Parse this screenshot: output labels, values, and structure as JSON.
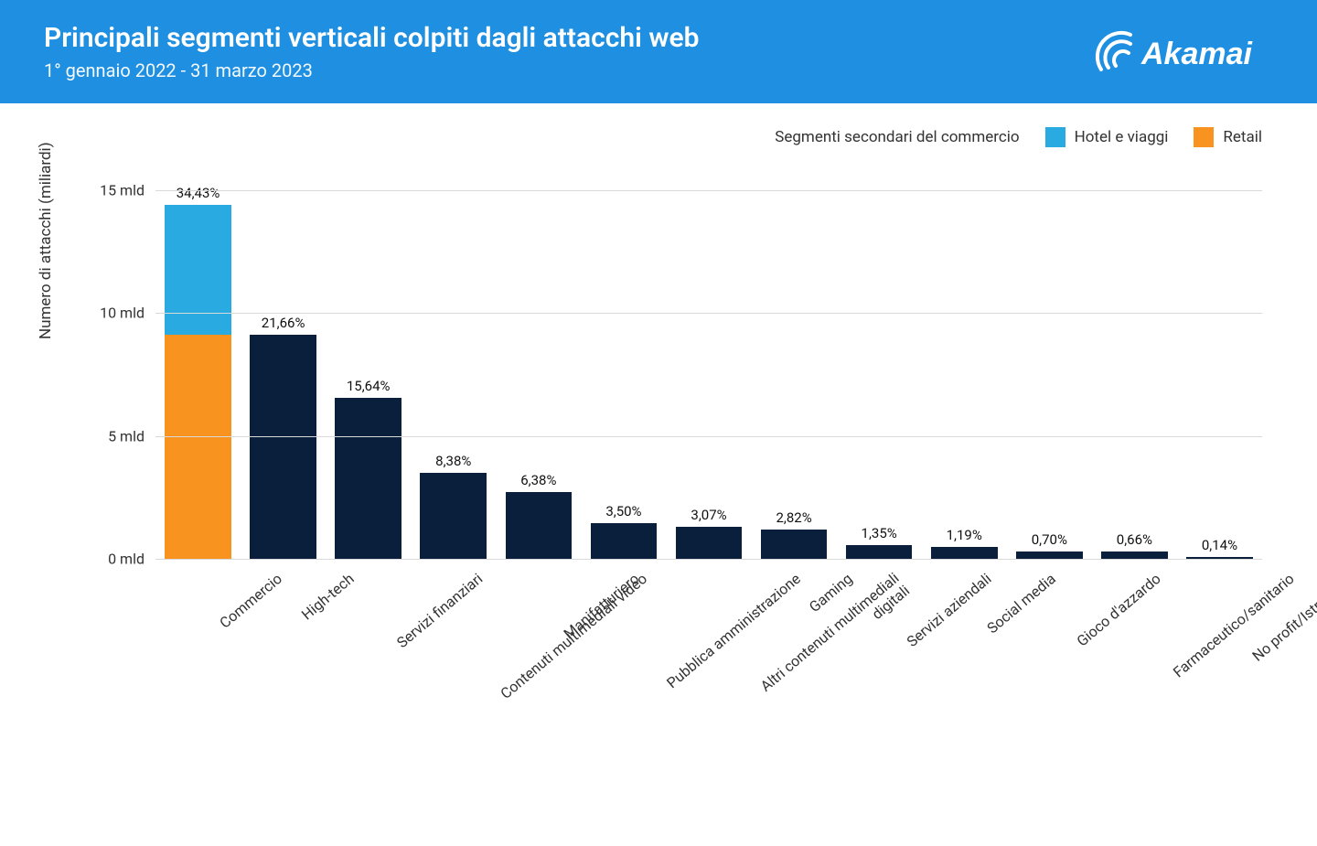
{
  "header": {
    "title": "Principali segmenti verticali colpiti dagli attacchi web",
    "subtitle": "1° gennaio 2022 - 31 marzo 2023",
    "logo_text": "Akamai",
    "bg_color": "#1e8fe1"
  },
  "legend": {
    "label": "Segmenti secondari del commercio",
    "items": [
      {
        "label": "Hotel e viaggi",
        "color": "#29abe2"
      },
      {
        "label": "Retail",
        "color": "#f7931e"
      }
    ]
  },
  "chart": {
    "type": "bar",
    "ylabel": "Numero di attacchi (miliardi)",
    "ymax": 16,
    "yticks": [
      {
        "value": 0,
        "label": "0 mld"
      },
      {
        "value": 5,
        "label": "5 mld"
      },
      {
        "value": 10,
        "label": "10 mld"
      },
      {
        "value": 15,
        "label": "15 mld"
      }
    ],
    "grid_color": "#d9d9d9",
    "default_bar_color": "#0a1f3c",
    "categories": [
      {
        "label": "Commercio",
        "pct_label": "34,43%",
        "stacked": true,
        "segments": [
          {
            "value": 9.1,
            "color": "#f7931e"
          },
          {
            "value": 5.3,
            "color": "#29abe2"
          }
        ]
      },
      {
        "label": "High-tech",
        "pct_label": "21,66%",
        "value": 9.1
      },
      {
        "label": "Servizi finanziari",
        "pct_label": "15,64%",
        "value": 6.55
      },
      {
        "label": "Contenuti multimediali video",
        "pct_label": "8,38%",
        "value": 3.5
      },
      {
        "label": "Manifatturiero",
        "pct_label": "6,38%",
        "value": 2.7
      },
      {
        "label": "Pubblica amministrazione",
        "pct_label": "3,50%",
        "value": 1.47
      },
      {
        "label": "Altri contenuti multimediali digitali",
        "pct_label": "3,07%",
        "value": 1.29,
        "wrap": true
      },
      {
        "label": "Gaming",
        "pct_label": "2,82%",
        "value": 1.18
      },
      {
        "label": "Servizi aziendali",
        "pct_label": "1,35%",
        "value": 0.57
      },
      {
        "label": "Social media",
        "pct_label": "1,19%",
        "value": 0.5
      },
      {
        "label": "Gioco d'azzardo",
        "pct_label": "0,70%",
        "value": 0.29
      },
      {
        "label": "Farmaceutico/sanitario",
        "pct_label": "0,66%",
        "value": 0.28
      },
      {
        "label": "No profit/Istruzione",
        "pct_label": "0,14%",
        "value": 0.06
      }
    ]
  }
}
